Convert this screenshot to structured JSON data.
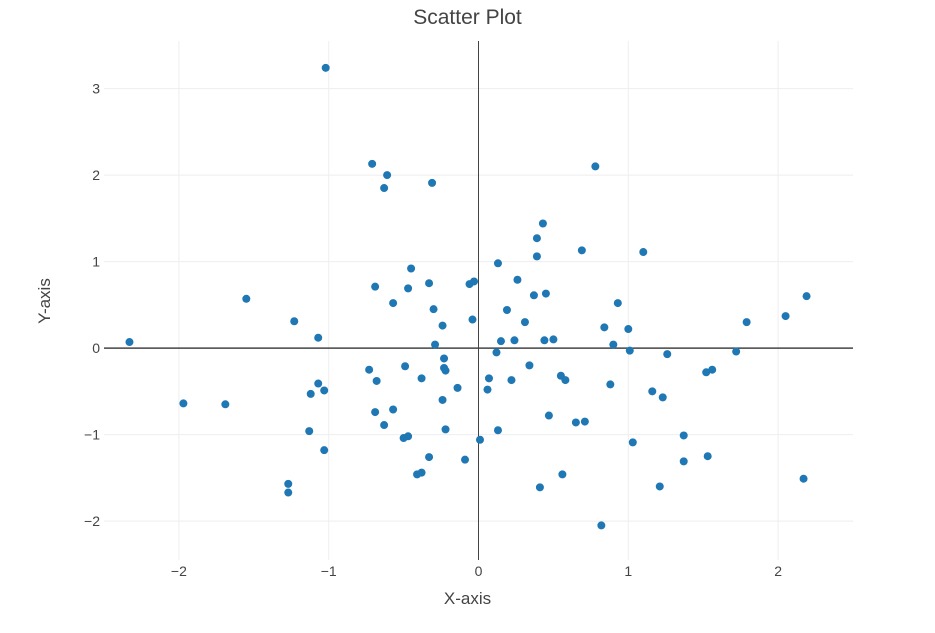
{
  "chart_data": {
    "type": "scatter",
    "title": "Scatter Plot",
    "xlabel": "X-axis",
    "ylabel": "Y-axis",
    "xlim": [
      -2.5,
      2.5
    ],
    "ylim": [
      -2.45,
      3.55
    ],
    "x_ticks": [
      -2,
      -1,
      0,
      1,
      2
    ],
    "y_ticks": [
      -2,
      -1,
      0,
      1,
      2,
      3
    ],
    "x_tick_labels": [
      "−2",
      "−1",
      "0",
      "1",
      "2"
    ],
    "y_tick_labels": [
      "−2",
      "−1",
      "0",
      "1",
      "2",
      "3"
    ],
    "grid": true,
    "zero_lines": true,
    "marker_color": "#1f77b4",
    "points": [
      [
        -2.33,
        0.07
      ],
      [
        -1.97,
        -0.64
      ],
      [
        -1.69,
        -0.65
      ],
      [
        -1.55,
        0.57
      ],
      [
        -1.23,
        0.31
      ],
      [
        -1.27,
        -1.57
      ],
      [
        -1.27,
        -1.67
      ],
      [
        -1.13,
        -0.96
      ],
      [
        -1.12,
        -0.53
      ],
      [
        -1.07,
        0.12
      ],
      [
        -1.07,
        -0.41
      ],
      [
        -1.03,
        -0.49
      ],
      [
        -1.03,
        -1.18
      ],
      [
        -1.02,
        3.24
      ],
      [
        -0.71,
        2.13
      ],
      [
        -0.69,
        0.71
      ],
      [
        -0.68,
        -0.38
      ],
      [
        -0.73,
        -0.25
      ],
      [
        -0.69,
        -0.74
      ],
      [
        -0.63,
        1.85
      ],
      [
        -0.61,
        2.0
      ],
      [
        -0.63,
        -0.89
      ],
      [
        -0.57,
        0.52
      ],
      [
        -0.57,
        -0.71
      ],
      [
        -0.5,
        -1.04
      ],
      [
        -0.47,
        -1.02
      ],
      [
        -0.49,
        -0.21
      ],
      [
        -0.47,
        0.69
      ],
      [
        -0.45,
        0.92
      ],
      [
        -0.41,
        -1.46
      ],
      [
        -0.38,
        -1.44
      ],
      [
        -0.38,
        -0.35
      ],
      [
        -0.33,
        0.75
      ],
      [
        -0.33,
        -1.26
      ],
      [
        -0.31,
        1.91
      ],
      [
        -0.3,
        0.45
      ],
      [
        -0.29,
        0.04
      ],
      [
        -0.24,
        0.26
      ],
      [
        -0.23,
        -0.12
      ],
      [
        -0.24,
        -0.6
      ],
      [
        -0.23,
        -0.23
      ],
      [
        -0.22,
        -0.26
      ],
      [
        -0.22,
        -0.94
      ],
      [
        -0.14,
        -0.46
      ],
      [
        -0.09,
        -1.29
      ],
      [
        -0.06,
        0.74
      ],
      [
        -0.04,
        0.33
      ],
      [
        -0.03,
        0.77
      ],
      [
        0.01,
        -1.06
      ],
      [
        0.06,
        -0.48
      ],
      [
        0.07,
        -0.35
      ],
      [
        0.12,
        -0.05
      ],
      [
        0.13,
        0.98
      ],
      [
        0.13,
        -0.95
      ],
      [
        0.15,
        0.08
      ],
      [
        0.19,
        0.44
      ],
      [
        0.22,
        -0.37
      ],
      [
        0.24,
        0.09
      ],
      [
        0.26,
        0.79
      ],
      [
        0.31,
        0.3
      ],
      [
        0.34,
        -0.2
      ],
      [
        0.37,
        0.61
      ],
      [
        0.39,
        1.06
      ],
      [
        0.39,
        1.27
      ],
      [
        0.41,
        -1.61
      ],
      [
        0.43,
        1.44
      ],
      [
        0.44,
        0.09
      ],
      [
        0.45,
        0.63
      ],
      [
        0.47,
        -0.78
      ],
      [
        0.5,
        0.1
      ],
      [
        0.55,
        -0.32
      ],
      [
        0.56,
        -1.46
      ],
      [
        0.58,
        -0.37
      ],
      [
        0.65,
        -0.86
      ],
      [
        0.69,
        1.13
      ],
      [
        0.71,
        -0.85
      ],
      [
        0.78,
        2.1
      ],
      [
        0.82,
        -2.05
      ],
      [
        0.84,
        0.24
      ],
      [
        0.88,
        -0.42
      ],
      [
        0.9,
        0.04
      ],
      [
        0.93,
        0.52
      ],
      [
        1.0,
        0.22
      ],
      [
        1.01,
        -0.03
      ],
      [
        1.03,
        -1.09
      ],
      [
        1.1,
        1.11
      ],
      [
        1.16,
        -0.5
      ],
      [
        1.21,
        -1.6
      ],
      [
        1.23,
        -0.57
      ],
      [
        1.26,
        -0.07
      ],
      [
        1.37,
        -1.01
      ],
      [
        1.37,
        -1.31
      ],
      [
        1.52,
        -0.28
      ],
      [
        1.53,
        -1.25
      ],
      [
        1.56,
        -0.25
      ],
      [
        1.72,
        -0.04
      ],
      [
        1.79,
        0.3
      ],
      [
        2.05,
        0.37
      ],
      [
        2.17,
        -1.51
      ],
      [
        2.19,
        0.6
      ]
    ]
  }
}
